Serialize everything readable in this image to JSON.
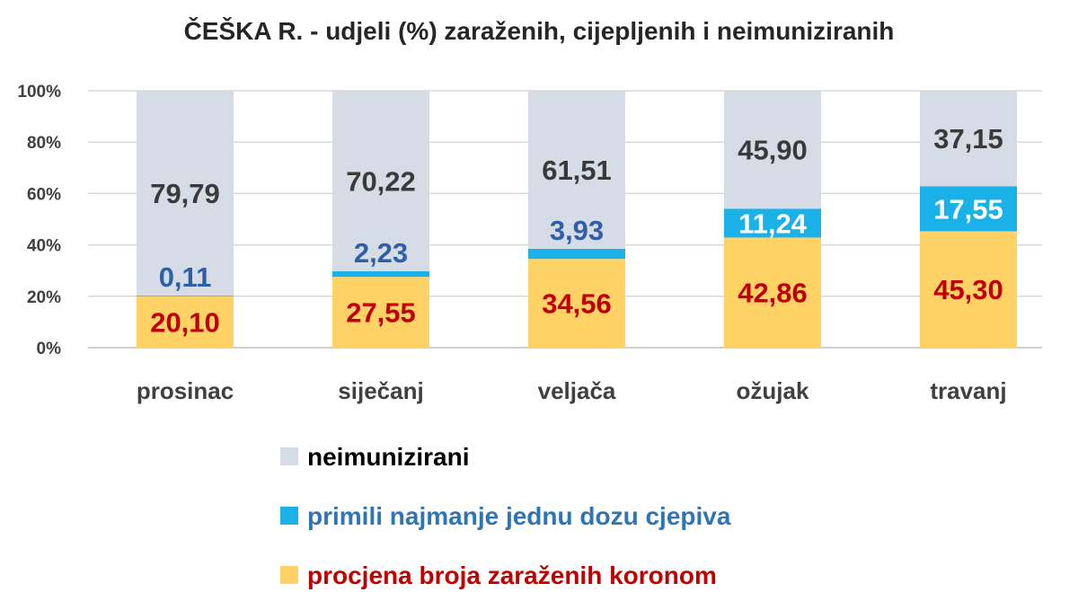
{
  "chart_data": {
    "type": "bar",
    "stacked": true,
    "title": "ČEŠKA R. - udjeli (%) zaraženih, cijepljenih i neimuniziranih",
    "xlabel": "",
    "ylabel": "",
    "ylim": [
      0,
      100
    ],
    "y_ticks": [
      "0%",
      "20%",
      "40%",
      "60%",
      "80%",
      "100%"
    ],
    "grid": true,
    "legend_position": "bottom",
    "categories": [
      "prosinac",
      "siječanj",
      "veljača",
      "ožujak",
      "travanj"
    ],
    "series": [
      {
        "name": "procjena broja zaraženih koronom",
        "color": "#FFD265",
        "label_color": "#C00000",
        "values": [
          20.1,
          27.55,
          34.56,
          42.86,
          45.3
        ],
        "labels": [
          "20,10",
          "27,55",
          "34,56",
          "42,86",
          "45,30"
        ]
      },
      {
        "name": "primili najmanje jednu dozu cjepiva",
        "color": "#1AB0E8",
        "label_color": "#2E5FA8",
        "values": [
          0.11,
          2.23,
          3.93,
          11.24,
          17.55
        ],
        "labels": [
          "0,11",
          "2,23",
          "3,93",
          "11,24",
          "17,55"
        ]
      },
      {
        "name": "neimunizirani",
        "color": "#D6DCE5",
        "label_color": "#3A3A3A",
        "values": [
          79.79,
          70.22,
          61.51,
          45.9,
          37.15
        ],
        "labels": [
          "79,79",
          "70,22",
          "61,51",
          "45,90",
          "37,15"
        ]
      }
    ],
    "legend_order": [
      2,
      1,
      0
    ]
  }
}
